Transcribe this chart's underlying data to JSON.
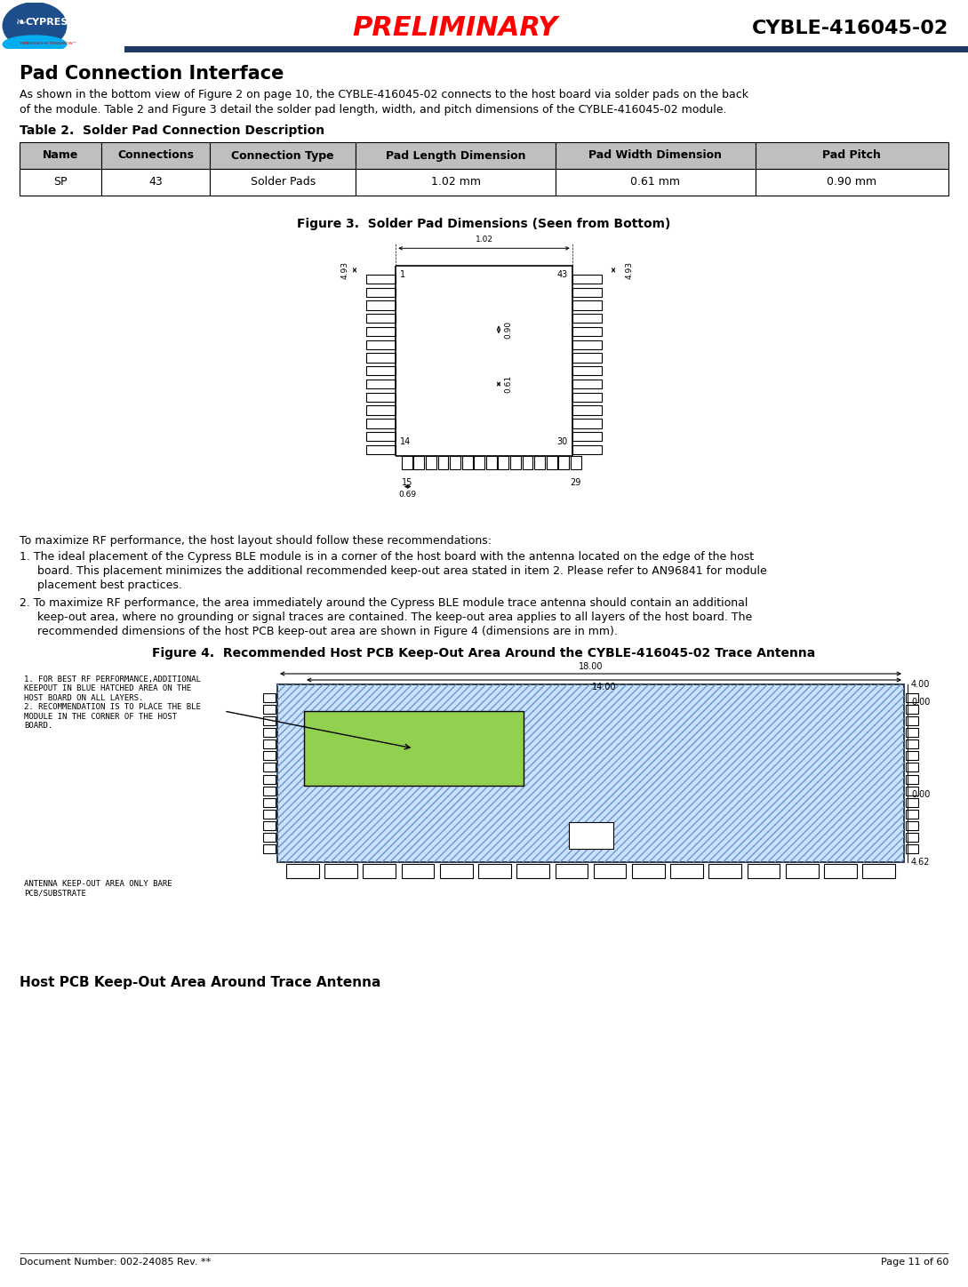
{
  "page_width": 10.89,
  "page_height": 14.48,
  "dpi": 100,
  "bg_color": "#ffffff",
  "header": {
    "preliminary_text": "PRELIMINARY",
    "preliminary_color": "#ff0000",
    "product_text": "CYBLE-416045-02",
    "product_color": "#000000",
    "bar_color": "#1f3864"
  },
  "footer": {
    "left_text": "Document Number: 002-24085 Rev. **",
    "right_text": "Page 11 of 60"
  },
  "section_title": "Pad Connection Interface",
  "body_line1_parts": [
    {
      "text": "As shown in the bottom view of ",
      "color": "#000000"
    },
    {
      "text": "Figure 2",
      "color": "#0070c0"
    },
    {
      "text": " on page 10, the CYBLE-416045-02 connects to the host board via solder pads on the back",
      "color": "#000000"
    }
  ],
  "body_line2_parts": [
    {
      "text": "of the module. ",
      "color": "#000000"
    },
    {
      "text": "Table 2",
      "color": "#0070c0"
    },
    {
      "text": " and ",
      "color": "#000000"
    },
    {
      "text": "Figure 3",
      "color": "#0070c0"
    },
    {
      "text": " detail the solder pad length, width, and pitch dimensions of the CYBLE-416045-02 module.",
      "color": "#000000"
    }
  ],
  "table_title": "Table 2.  Solder Pad Connection Description",
  "table_headers": [
    "Name",
    "Connections",
    "Connection Type",
    "Pad Length Dimension",
    "Pad Width Dimension",
    "Pad Pitch"
  ],
  "table_row": [
    "SP",
    "43",
    "Solder Pads",
    "1.02 mm",
    "0.61 mm",
    "0.90 mm"
  ],
  "table_header_bg": "#bfbfbf",
  "figure3_title": "Figure 3.  Solder Pad Dimensions (Seen from Bottom)",
  "figure4_title": "Figure 4.  Recommended Host PCB Keep-Out Area Around the CYBLE-416045-02 Trace Antenna",
  "rf_intro": "To maximize RF performance, the host layout should follow these recommendations:",
  "rf_item1_parts": [
    {
      "text": "1. The ideal placement of the Cypress BLE module is in a corner of the host board with the antenna located on the edge of the host",
      "color": "#000000"
    },
    {
      "text": "board. This placement minimizes the additional recommended keep-out area stated in item 2. Please refer to ",
      "color": "#000000"
    },
    {
      "text": "AN96841",
      "color": "#0070c0"
    },
    {
      "text": " for module",
      "color": "#000000"
    },
    {
      "text": "placement best practices.",
      "color": "#000000"
    }
  ],
  "rf_item2_parts": [
    {
      "text": "2. To maximize RF performance, the area immediately around the Cypress BLE module trace antenna should contain an additional",
      "color": "#000000"
    },
    {
      "text": "keep-out area, where no grounding or signal traces are contained. The keep-out area applies to all layers of the host board. The",
      "color": "#000000"
    },
    {
      "text": "recommended dimensions of the host PCB keep-out area are shown in ",
      "color": "#000000"
    },
    {
      "text": "Figure 4",
      "color": "#0070c0"
    },
    {
      "text": " (dimensions are in mm).",
      "color": "#000000"
    }
  ],
  "keepout_title": "Host PCB Keep-Out Area Around Trace Antenna",
  "link_color": "#0070c0",
  "text_color": "#000000",
  "fig4_note1": "1. FOR BEST RF PERFORMANCE,ADDITIONAL\nKEEPOUT IN BLUE HATCHED AREA ON THE\nHOST BOARD ON ALL LAYERS.\n2. RECOMMENDATION IS TO PLACE THE BLE\nMODULE IN THE CORNER OF THE HOST\nBOARD.",
  "fig4_note2": "ANTENNA KEEP-OUT AREA ONLY BARE\nPCB/SUBSTRATE"
}
